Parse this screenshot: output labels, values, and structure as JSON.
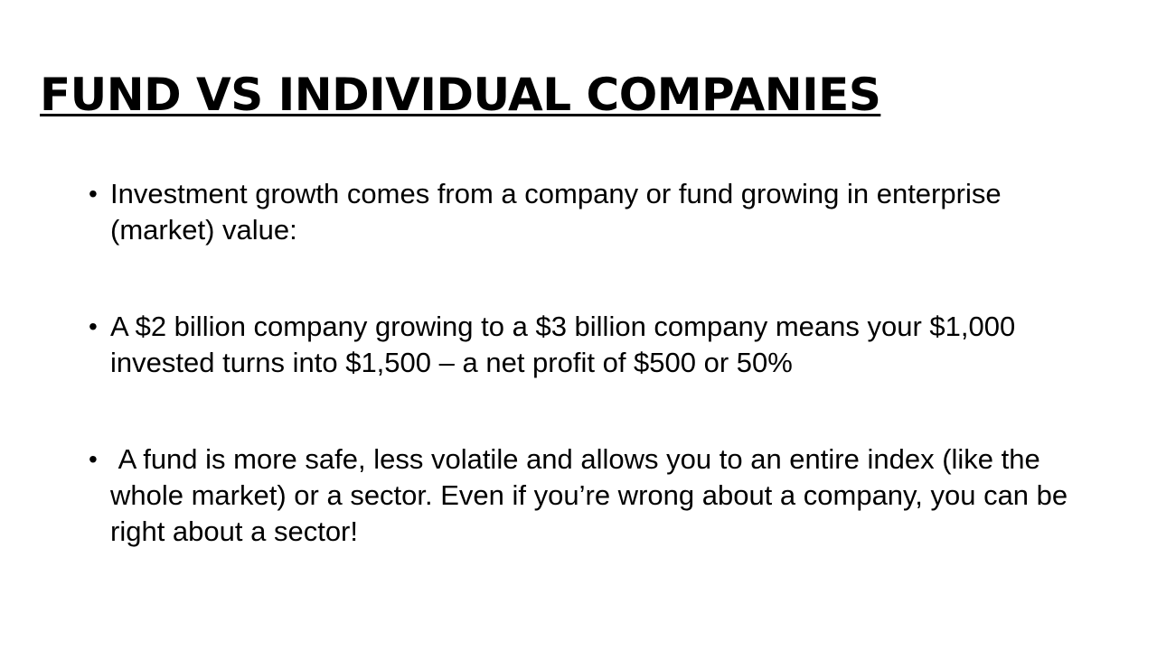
{
  "slide": {
    "title": "FUND VS INDIVIDUAL COMPANIES",
    "bullet_marker": "•",
    "bullets": [
      {
        "text": "Investment growth comes from a company or fund growing in enterprise (market) value:"
      },
      {
        "text": "A $2 billion company growing to a $3 billion company means your $1,000 invested turns into $1,500 – a net profit of $500 or 50%"
      },
      {
        "text": " A fund is more safe, less volatile and allows you to an entire index (like the whole market) or a sector. Even if you’re wrong about a company, you can be right about a sector!"
      }
    ]
  }
}
